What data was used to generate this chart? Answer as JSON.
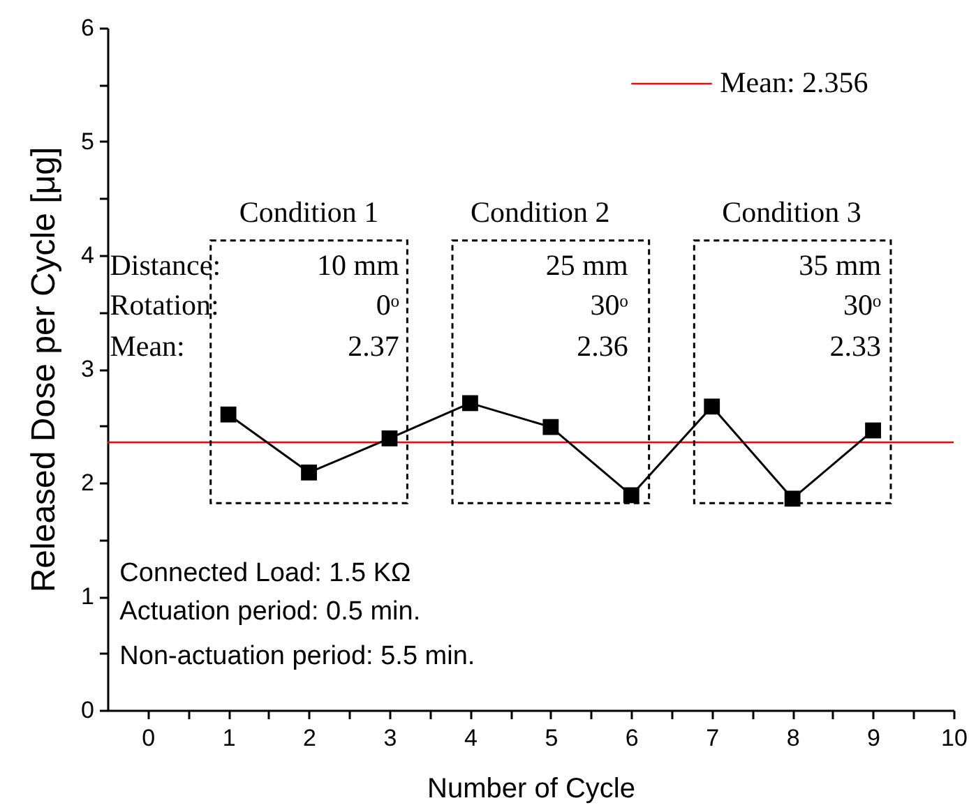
{
  "chart_data": {
    "type": "line",
    "xlabel": "Number of Cycle",
    "ylabel": "Released Dose per Cycle [μg]",
    "x": [
      1,
      2,
      3,
      4,
      5,
      6,
      7,
      8,
      9
    ],
    "series": [
      {
        "color": "#000000",
        "values": [
          2.6,
          2.09,
          2.39,
          2.7,
          2.49,
          1.89,
          2.67,
          1.86,
          2.46
        ]
      }
    ],
    "xlim": [
      -0.5,
      10
    ],
    "xticks": [
      0,
      {
        "value": 0.5,
        "label": null
      },
      1,
      {
        "value": 1.5,
        "label": null
      },
      2,
      {
        "value": 2.5,
        "label": null
      },
      3,
      {
        "value": 3.5,
        "label": null
      },
      4,
      {
        "value": 4.5,
        "label": null
      },
      5,
      {
        "value": 5.5,
        "label": null
      },
      6,
      {
        "value": 6.5,
        "label": null
      },
      7,
      {
        "value": 7.5,
        "label": null
      },
      8,
      {
        "value": 8.5,
        "label": null
      },
      9,
      {
        "value": 9.5,
        "label": null
      },
      10
    ],
    "ylim": [
      0,
      6
    ],
    "yticks": [
      0,
      {
        "value": 0.5,
        "label": null
      },
      1,
      {
        "value": 1.5,
        "label": null
      },
      2,
      {
        "value": 2.5,
        "label": null
      },
      3,
      {
        "value": 3.5,
        "label": null
      },
      4,
      {
        "value": 4.5,
        "label": null
      },
      5,
      {
        "value": 5.5,
        "label": null
      },
      6
    ],
    "ref_lines": [
      {
        "axis": "y",
        "value": 2.356,
        "label": "Mean: 2.356",
        "color": "#ff0000"
      }
    ],
    "annotations": [
      "Condition 1",
      "Condition 2",
      "Condition 3",
      "Distance:",
      "Rotation:",
      "Mean:",
      "10 mm",
      "0ᵒ",
      "2.37",
      "25 mm",
      "30ᵒ",
      "2.36",
      "35 mm",
      "30ᵒ",
      "2.33",
      "Connected Load: 1.5 KΩ",
      "Actuation period: 0.5 min.",
      "Non-actuation period: 5.5 min."
    ],
    "marker": "square",
    "line_style": "solid",
    "grid": false,
    "legend": "top right"
  }
}
